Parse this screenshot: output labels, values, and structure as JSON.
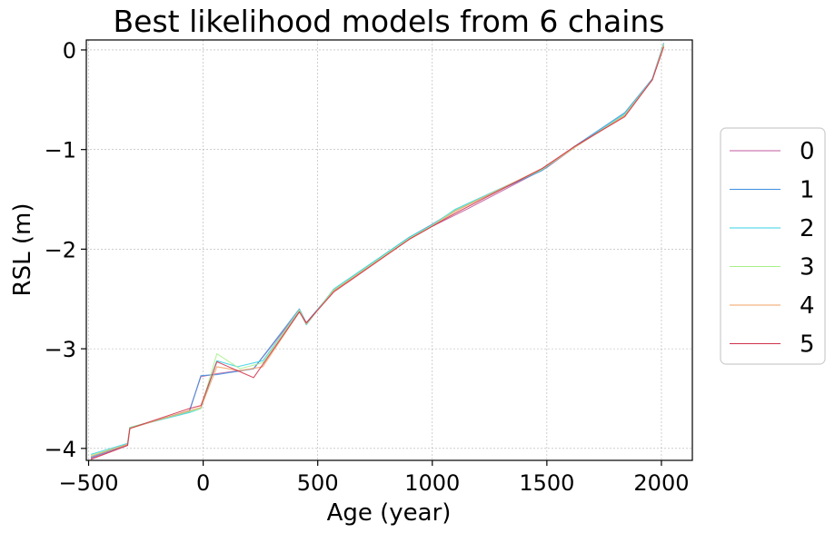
{
  "chart_data": {
    "type": "line",
    "title": "Best likelihood models from 6 chains",
    "xlabel": "Age (year)",
    "ylabel": "RSL (m)",
    "xlim": [
      -510,
      2135
    ],
    "ylim": [
      -4.12,
      0.1
    ],
    "xticks": [
      -500,
      0,
      500,
      1000,
      1500,
      2000
    ],
    "xtick_labels": [
      "−500",
      "0",
      "500",
      "1000",
      "1500",
      "2000"
    ],
    "yticks": [
      0,
      -1,
      -2,
      -3,
      -4
    ],
    "ytick_labels": [
      "0",
      "−1",
      "−2",
      "−3",
      "−4"
    ],
    "grid": true,
    "legend_position": "center-right",
    "series": [
      {
        "name": "0",
        "color": "#c05a9e",
        "x": [
          -490,
          -330,
          -320,
          -60,
          -10,
          60,
          220,
          420,
          450,
          570,
          900,
          1000,
          1150,
          1500,
          1620,
          1840,
          1960,
          2010
        ],
        "y": [
          -4.1,
          -3.97,
          -3.8,
          -3.62,
          -3.28,
          -3.25,
          -3.2,
          -2.62,
          -2.74,
          -2.42,
          -1.9,
          -1.77,
          -1.6,
          -1.18,
          -0.98,
          -0.65,
          -0.3,
          0.05
        ]
      },
      {
        "name": "1",
        "color": "#3d8fe0",
        "x": [
          -490,
          -330,
          -320,
          -60,
          -10,
          60,
          220,
          420,
          450,
          570,
          900,
          1000,
          1100,
          1480,
          1620,
          1840,
          1960,
          2010
        ],
        "y": [
          -4.09,
          -3.96,
          -3.79,
          -3.63,
          -3.27,
          -3.26,
          -3.2,
          -2.6,
          -2.74,
          -2.41,
          -1.88,
          -1.75,
          -1.61,
          -1.21,
          -0.97,
          -0.63,
          -0.29,
          0.07
        ]
      },
      {
        "name": "2",
        "color": "#34d0e6",
        "x": [
          -490,
          -330,
          -320,
          -60,
          -10,
          60,
          150,
          260,
          420,
          450,
          570,
          900,
          1000,
          1100,
          1480,
          1620,
          1840,
          1960,
          2010
        ],
        "y": [
          -4.06,
          -3.95,
          -3.79,
          -3.64,
          -3.6,
          -3.12,
          -3.18,
          -3.12,
          -2.62,
          -2.76,
          -2.4,
          -1.88,
          -1.76,
          -1.6,
          -1.2,
          -0.98,
          -0.64,
          -0.3,
          0.05
        ]
      },
      {
        "name": "3",
        "color": "#a8f08a",
        "x": [
          -490,
          -330,
          -320,
          -60,
          -10,
          60,
          160,
          260,
          420,
          450,
          570,
          900,
          1000,
          1100,
          1480,
          1620,
          1840,
          1960,
          2010
        ],
        "y": [
          -4.07,
          -3.96,
          -3.79,
          -3.63,
          -3.6,
          -3.05,
          -3.2,
          -3.14,
          -2.61,
          -2.75,
          -2.41,
          -1.89,
          -1.76,
          -1.61,
          -1.2,
          -0.98,
          -0.65,
          -0.3,
          0.06
        ]
      },
      {
        "name": "4",
        "color": "#f0a060",
        "x": [
          -490,
          -330,
          -320,
          -60,
          -10,
          60,
          160,
          260,
          420,
          450,
          570,
          900,
          1000,
          1100,
          1480,
          1620,
          1840,
          1960,
          2010
        ],
        "y": [
          -4.08,
          -3.96,
          -3.8,
          -3.62,
          -3.59,
          -3.18,
          -3.22,
          -3.18,
          -2.63,
          -2.75,
          -2.42,
          -1.9,
          -1.77,
          -1.62,
          -1.19,
          -0.98,
          -0.66,
          -0.3,
          0.04
        ]
      },
      {
        "name": "5",
        "color": "#d0304a",
        "x": [
          -490,
          -330,
          -320,
          -60,
          -10,
          60,
          220,
          420,
          450,
          570,
          900,
          1000,
          1100,
          1480,
          1620,
          1840,
          1960,
          2010
        ],
        "y": [
          -4.11,
          -3.97,
          -3.8,
          -3.6,
          -3.57,
          -3.13,
          -3.29,
          -2.63,
          -2.74,
          -2.43,
          -1.9,
          -1.77,
          -1.64,
          -1.19,
          -0.97,
          -0.67,
          -0.3,
          0.03
        ]
      }
    ]
  }
}
